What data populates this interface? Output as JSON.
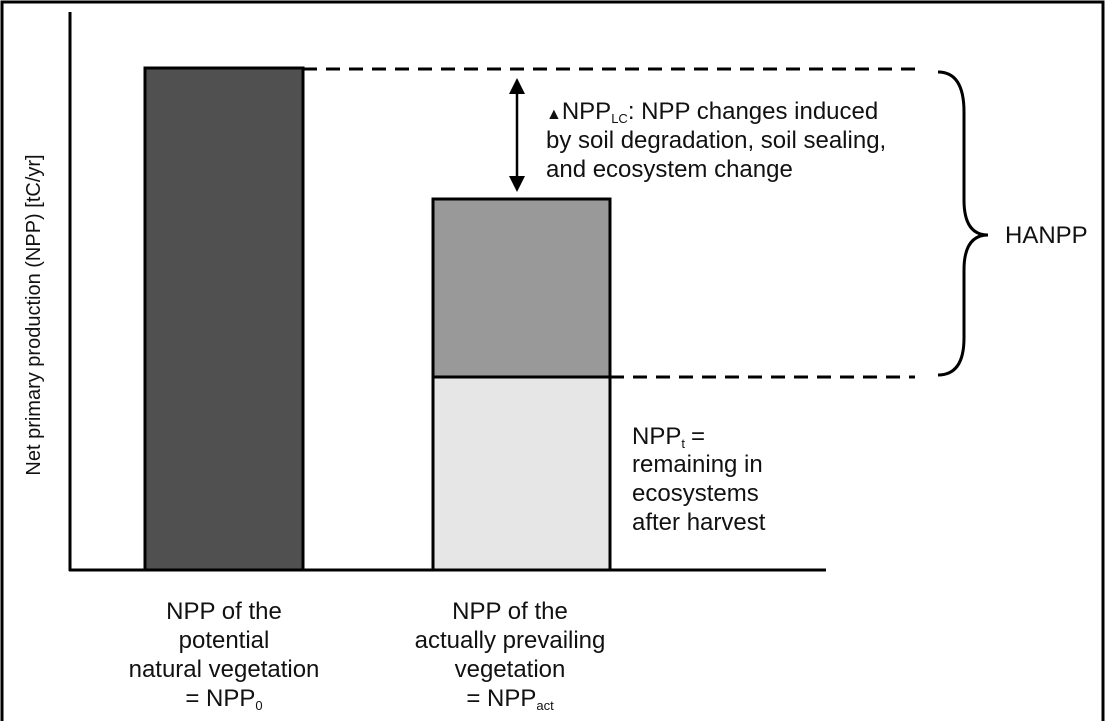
{
  "axis_label": "Net primary production (NPP) [tC/yr]",
  "annotation": {
    "symbol": "▲",
    "term": "NPP",
    "subscript": "LC",
    "lines": [
      ": NPP changes induced",
      "by soil degradation, soil sealing,",
      "and ecosystem change"
    ]
  },
  "brace_label": "HANPP",
  "remaining": {
    "term": "NPP",
    "subscript": "t",
    "lines": [
      "=",
      "remaining in",
      "ecosystems",
      "after harvest"
    ]
  },
  "bars": [
    {
      "lines": [
        "NPP of the",
        "potential",
        "natural vegetation"
      ],
      "term": "= NPP",
      "subscript": "0"
    },
    {
      "lines": [
        "NPP of the",
        "actually prevailing",
        "vegetation"
      ],
      "term": "= NPP",
      "subscript": "act"
    }
  ]
}
